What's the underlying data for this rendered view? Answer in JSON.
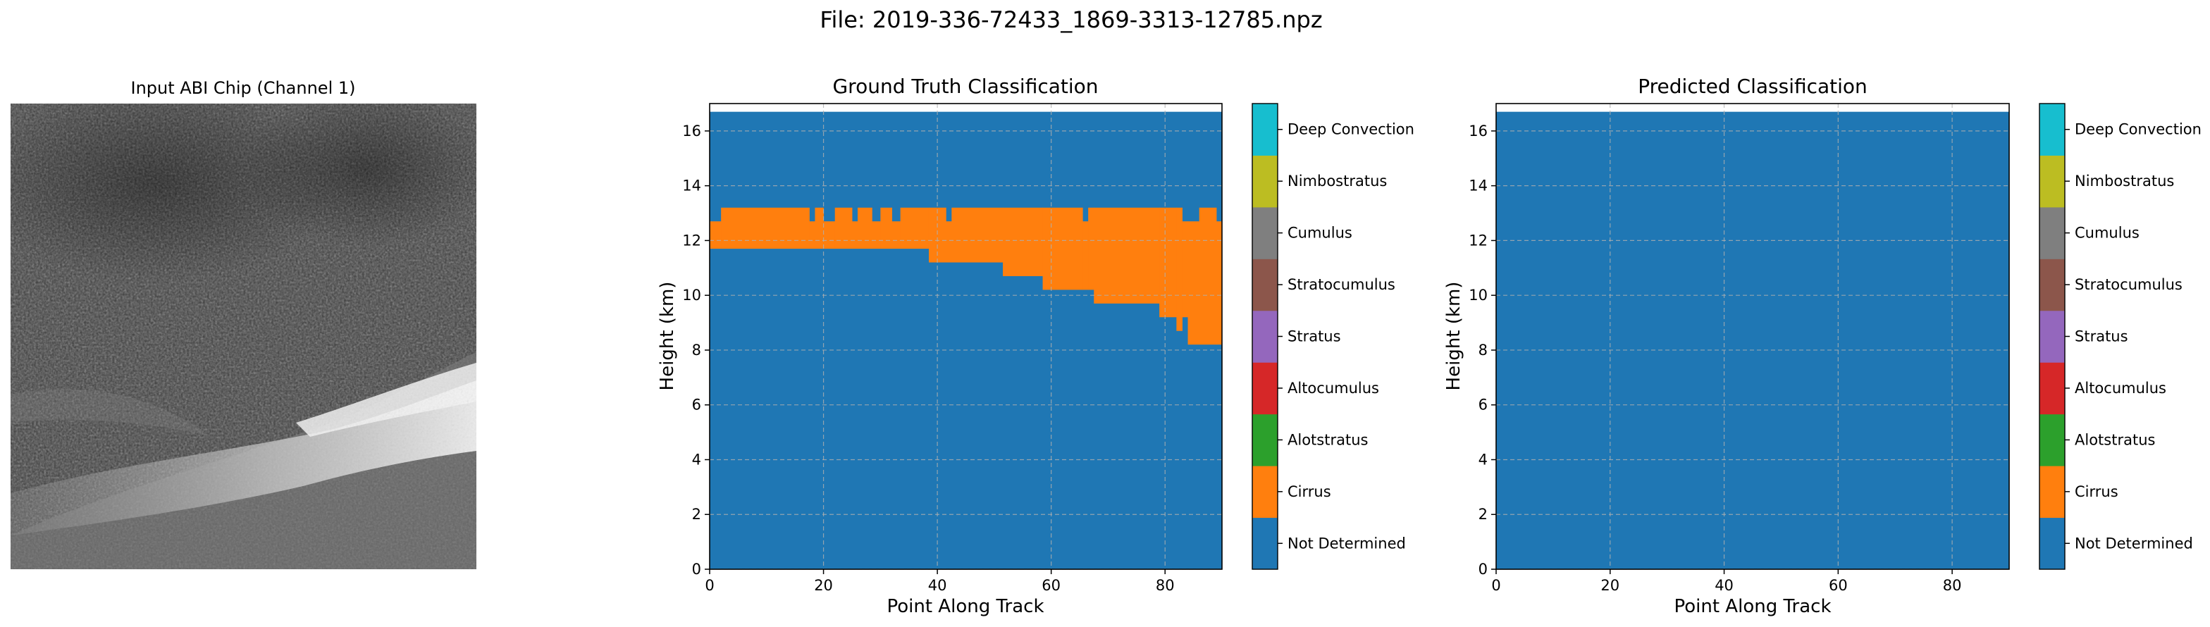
{
  "figure": {
    "suptitle": "File: 2019-336-72433_1869-3313-12785.npz"
  },
  "classes": [
    {
      "name": "Not Determined",
      "color": "#1f77b4"
    },
    {
      "name": "Cirrus",
      "color": "#ff7f0e"
    },
    {
      "name": "Alotstratus",
      "color": "#2ca02c"
    },
    {
      "name": "Altocumulus",
      "color": "#d62728"
    },
    {
      "name": "Stratus",
      "color": "#9467bd"
    },
    {
      "name": "Stratocumulus",
      "color": "#8c564b"
    },
    {
      "name": "Cumulus",
      "color": "#7f7f7f"
    },
    {
      "name": "Nimbostratus",
      "color": "#bcbd22"
    },
    {
      "name": "Deep Convection",
      "color": "#17becf"
    }
  ],
  "chart_data": [
    {
      "type": "image",
      "title": "Input ABI Chip (Channel 1)",
      "colormap": "gray"
    },
    {
      "type": "heatmap",
      "title": "Ground Truth Classification",
      "xlabel": "Point Along Track",
      "ylabel": "Height (km)",
      "xlim": [
        0,
        90
      ],
      "ylim": [
        0,
        17
      ],
      "xticks": [
        0,
        20,
        40,
        60,
        80
      ],
      "yticks": [
        0,
        2,
        4,
        6,
        8,
        10,
        12,
        14,
        16
      ],
      "grid": true,
      "data_top_km": 16.7,
      "background_class": "Not Determined",
      "layers": [
        {
          "class": "Cirrus",
          "segments": [
            {
              "x0": 0,
              "x1": 2,
              "bottom": 11.7,
              "top": 12.7
            },
            {
              "x0": 2,
              "x1": 17.5,
              "bottom": 11.7,
              "top": 13.2
            },
            {
              "x0": 17.5,
              "x1": 18.5,
              "bottom": 11.7,
              "top": 12.7
            },
            {
              "x0": 18.5,
              "x1": 20,
              "bottom": 11.7,
              "top": 13.2
            },
            {
              "x0": 20,
              "x1": 22,
              "bottom": 11.7,
              "top": 12.7
            },
            {
              "x0": 22,
              "x1": 25,
              "bottom": 11.7,
              "top": 13.2
            },
            {
              "x0": 25,
              "x1": 26,
              "bottom": 11.7,
              "top": 12.7
            },
            {
              "x0": 26,
              "x1": 28.5,
              "bottom": 11.7,
              "top": 13.2
            },
            {
              "x0": 28.5,
              "x1": 30,
              "bottom": 11.7,
              "top": 12.7
            },
            {
              "x0": 30,
              "x1": 32,
              "bottom": 11.7,
              "top": 13.2
            },
            {
              "x0": 32,
              "x1": 33.5,
              "bottom": 11.7,
              "top": 12.7
            },
            {
              "x0": 33.5,
              "x1": 38.5,
              "bottom": 11.7,
              "top": 13.2
            },
            {
              "x0": 38.5,
              "x1": 41.5,
              "bottom": 11.2,
              "top": 13.2
            },
            {
              "x0": 41.5,
              "x1": 42.5,
              "bottom": 11.2,
              "top": 12.7
            },
            {
              "x0": 42.5,
              "x1": 51.5,
              "bottom": 11.2,
              "top": 13.2
            },
            {
              "x0": 51.5,
              "x1": 58.5,
              "bottom": 10.7,
              "top": 13.2
            },
            {
              "x0": 58.5,
              "x1": 65.5,
              "bottom": 10.2,
              "top": 13.2
            },
            {
              "x0": 65.5,
              "x1": 66.5,
              "bottom": 10.2,
              "top": 12.7
            },
            {
              "x0": 66.5,
              "x1": 67.5,
              "bottom": 10.2,
              "top": 13.2
            },
            {
              "x0": 67.5,
              "x1": 79,
              "bottom": 9.7,
              "top": 13.2
            },
            {
              "x0": 79,
              "x1": 82,
              "bottom": 9.2,
              "top": 13.2
            },
            {
              "x0": 82,
              "x1": 83,
              "bottom": 8.7,
              "top": 13.2
            },
            {
              "x0": 83,
              "x1": 84,
              "bottom": 9.2,
              "top": 12.7
            },
            {
              "x0": 84,
              "x1": 86,
              "bottom": 8.2,
              "top": 12.7
            },
            {
              "x0": 86,
              "x1": 89,
              "bottom": 8.2,
              "top": 13.2
            },
            {
              "x0": 89,
              "x1": 90,
              "bottom": 8.2,
              "top": 12.7
            }
          ]
        }
      ]
    },
    {
      "type": "heatmap",
      "title": "Predicted Classification",
      "xlabel": "Point Along Track",
      "ylabel": "Height (km)",
      "xlim": [
        0,
        90
      ],
      "ylim": [
        0,
        17
      ],
      "xticks": [
        0,
        20,
        40,
        60,
        80
      ],
      "yticks": [
        0,
        2,
        4,
        6,
        8,
        10,
        12,
        14,
        16
      ],
      "grid": true,
      "data_top_km": 16.7,
      "background_class": "Not Determined",
      "layers": []
    }
  ]
}
